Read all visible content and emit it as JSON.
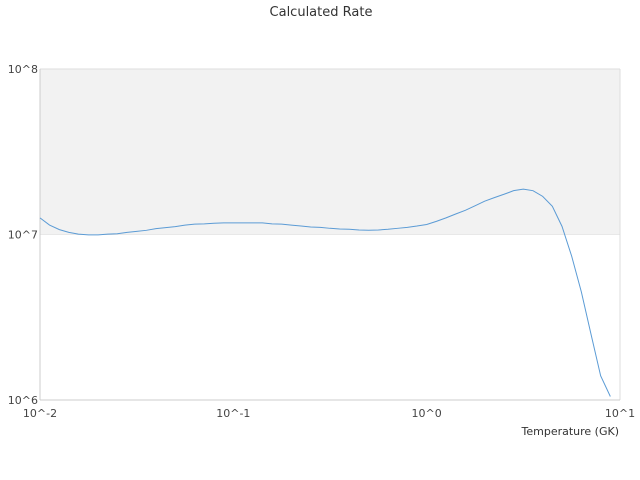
{
  "chart_data": {
    "type": "line",
    "title": "Calculated Rate",
    "xlabel": "Temperature (GK)",
    "ylabel": "",
    "xscale": "log",
    "yscale": "log",
    "xlim": [
      0.01,
      10
    ],
    "ylim": [
      1000000,
      100000000
    ],
    "grid": "alternating horizontal bands",
    "x_ticks": [
      "10^-2",
      "10^-1",
      "10^0",
      "10^1"
    ],
    "y_ticks": [
      "10^6",
      "10^7",
      "10^8"
    ],
    "series": [
      {
        "color": "#5b9bd5",
        "x": [
          0.01,
          0.0112,
          0.0126,
          0.0141,
          0.0158,
          0.0178,
          0.02,
          0.0224,
          0.0251,
          0.0282,
          0.0316,
          0.0355,
          0.0398,
          0.0447,
          0.0501,
          0.0562,
          0.0631,
          0.0708,
          0.0794,
          0.0891,
          0.1,
          0.1122,
          0.1259,
          0.1413,
          0.1585,
          0.1778,
          0.1995,
          0.2239,
          0.2512,
          0.2818,
          0.3162,
          0.3548,
          0.3981,
          0.4467,
          0.5012,
          0.5623,
          0.631,
          0.7079,
          0.7943,
          0.8913,
          1.0,
          1.122,
          1.259,
          1.413,
          1.585,
          1.778,
          1.995,
          2.239,
          2.512,
          2.818,
          3.162,
          3.548,
          3.981,
          4.467,
          5.012,
          5.623,
          6.31,
          7.079,
          7.943,
          8.913
        ],
        "y": [
          12600000,
          11400000,
          10700000,
          10300000,
          10050000,
          9950000,
          9950000,
          10050000,
          10100000,
          10300000,
          10450000,
          10600000,
          10850000,
          11000000,
          11150000,
          11400000,
          11550000,
          11600000,
          11700000,
          11750000,
          11750000,
          11750000,
          11750000,
          11750000,
          11600000,
          11550000,
          11400000,
          11250000,
          11100000,
          11050000,
          10900000,
          10800000,
          10750000,
          10650000,
          10600000,
          10650000,
          10750000,
          10900000,
          11050000,
          11250000,
          11500000,
          12000000,
          12600000,
          13300000,
          14000000,
          14900000,
          15900000,
          16700000,
          17500000,
          18400000,
          18800000,
          18400000,
          17000000,
          14800000,
          11200000,
          7400000,
          4500000,
          2500000,
          1400000,
          1050000
        ]
      }
    ]
  }
}
